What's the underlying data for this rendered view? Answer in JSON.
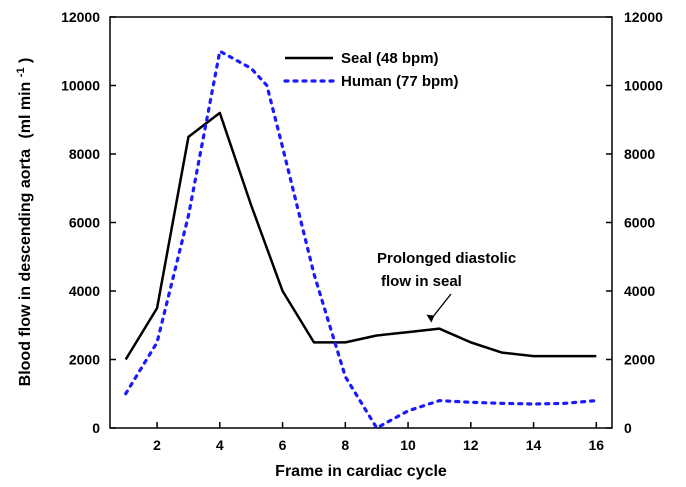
{
  "chart_data": {
    "type": "line",
    "xlabel": "Frame in cardiac cycle",
    "ylabel": "Blood flow in descending aorta",
    "ylabel_unit": "(ml min",
    "ylabel_superscript": "-1",
    "ylabel_close": ")",
    "xlim": [
      0.5,
      16.5
    ],
    "ylim": [
      0,
      12000
    ],
    "x_ticks": [
      2,
      4,
      6,
      8,
      10,
      12,
      14,
      16
    ],
    "x_tick_labels": [
      "2",
      "4",
      "6",
      "8",
      "10",
      "12",
      "14",
      "16"
    ],
    "y_ticks": [
      0,
      2000,
      4000,
      6000,
      8000,
      10000,
      12000
    ],
    "y_tick_labels": [
      "0",
      "2000",
      "4000",
      "6000",
      "8000",
      "10000",
      "12000"
    ],
    "right_axis_ticks": [
      0,
      2000,
      4000,
      6000,
      8000,
      10000,
      12000
    ],
    "right_axis_tick_labels": [
      "0",
      "2000",
      "4000",
      "6000",
      "8000",
      "10000",
      "12000"
    ],
    "grid": false,
    "legend_position": "top-center",
    "series": [
      {
        "name": "Seal (48 bpm)",
        "color": "#000000",
        "style": "solid",
        "x": [
          1,
          2,
          3,
          4,
          5,
          6,
          7,
          8,
          9,
          10,
          11,
          12,
          13,
          14,
          15,
          16
        ],
        "y": [
          2000,
          3500,
          8500,
          9200,
          6500,
          4000,
          2500,
          2500,
          2700,
          2800,
          2900,
          2500,
          2200,
          2100,
          2100,
          2100
        ]
      },
      {
        "name": "Human (77 bpm)",
        "color": "#1a1aff",
        "style": "dotted",
        "x": [
          1,
          2,
          3,
          4,
          5,
          5.5,
          6,
          7,
          8,
          9,
          10,
          11,
          12,
          13,
          14,
          15,
          16
        ],
        "y": [
          1000,
          2500,
          6200,
          11000,
          10500,
          10000,
          8200,
          4500,
          1500,
          0,
          500,
          800,
          750,
          720,
          700,
          720,
          800
        ]
      }
    ],
    "annotations": [
      {
        "lines": [
          "Prolonged diastolic",
          "flow in seal"
        ],
        "target_x": 11,
        "target_y": 2900
      }
    ]
  }
}
